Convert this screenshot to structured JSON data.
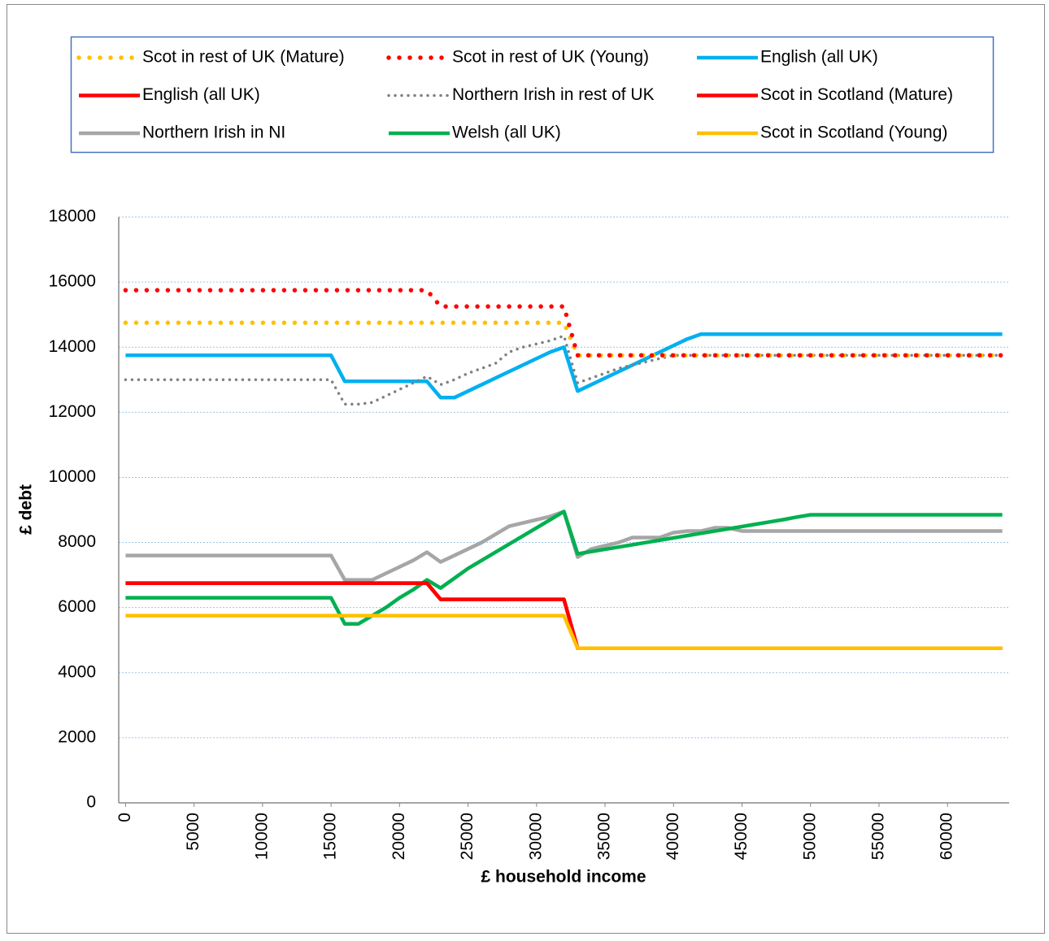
{
  "chart_data": {
    "type": "line",
    "x_label": "£ household income",
    "y_label": "£ debt",
    "x": [
      0,
      1000,
      2000,
      3000,
      4000,
      5000,
      6000,
      7000,
      8000,
      9000,
      10000,
      11000,
      12000,
      13000,
      14000,
      15000,
      16000,
      17000,
      18000,
      19000,
      20000,
      21000,
      22000,
      23000,
      24000,
      25000,
      26000,
      27000,
      28000,
      29000,
      30000,
      31000,
      32000,
      33000,
      34000,
      35000,
      36000,
      37000,
      38000,
      39000,
      40000,
      41000,
      42000,
      43000,
      44000,
      45000,
      46000,
      47000,
      48000,
      49000,
      50000,
      51000,
      52000,
      53000,
      54000,
      55000,
      56000,
      57000,
      58000,
      59000,
      60000,
      61000,
      62000,
      63000,
      64000
    ],
    "xlim": [
      -500,
      64500
    ],
    "xticks": [
      0,
      5000,
      10000,
      15000,
      20000,
      25000,
      30000,
      35000,
      40000,
      45000,
      50000,
      55000,
      60000
    ],
    "ylim": [
      0,
      18000
    ],
    "yticks": [
      0,
      2000,
      4000,
      6000,
      8000,
      10000,
      12000,
      14000,
      16000,
      18000
    ],
    "grid": true,
    "series": [
      {
        "name": "Scot in rest of UK (Mature)",
        "color": "#ffc000",
        "line_style": "dotted",
        "values": [
          14750,
          14750,
          14750,
          14750,
          14750,
          14750,
          14750,
          14750,
          14750,
          14750,
          14750,
          14750,
          14750,
          14750,
          14750,
          14750,
          14750,
          14750,
          14750,
          14750,
          14750,
          14750,
          14750,
          14750,
          14750,
          14750,
          14750,
          14750,
          14750,
          14750,
          14750,
          14750,
          14750,
          13750,
          13750,
          13750,
          13750,
          13750,
          13750,
          13750,
          13750,
          13750,
          13750,
          13750,
          13750,
          13750,
          13750,
          13750,
          13750,
          13750,
          13750,
          13750,
          13750,
          13750,
          13750,
          13750,
          13750,
          13750,
          13750,
          13750,
          13750,
          13750,
          13750,
          13750,
          13750
        ]
      },
      {
        "name": "Scot in rest of UK (Young)",
        "color": "#ff0000",
        "line_style": "dotted",
        "values": [
          15750,
          15750,
          15750,
          15750,
          15750,
          15750,
          15750,
          15750,
          15750,
          15750,
          15750,
          15750,
          15750,
          15750,
          15750,
          15750,
          15750,
          15750,
          15750,
          15750,
          15750,
          15750,
          15750,
          15250,
          15250,
          15250,
          15250,
          15250,
          15250,
          15250,
          15250,
          15250,
          15250,
          13750,
          13750,
          13750,
          13750,
          13750,
          13750,
          13750,
          13750,
          13750,
          13750,
          13750,
          13750,
          13750,
          13750,
          13750,
          13750,
          13750,
          13750,
          13750,
          13750,
          13750,
          13750,
          13750,
          13750,
          13750,
          13750,
          13750,
          13750,
          13750,
          13750,
          13750,
          13750
        ]
      },
      {
        "name": "English (all UK)",
        "color": "#00b0f0",
        "line_style": "solid",
        "values": [
          13750,
          13750,
          13750,
          13750,
          13750,
          13750,
          13750,
          13750,
          13750,
          13750,
          13750,
          13750,
          13750,
          13750,
          13750,
          13750,
          12950,
          12950,
          12950,
          12950,
          12950,
          12950,
          12950,
          12450,
          12450,
          12650,
          12850,
          13050,
          13250,
          13450,
          13650,
          13850,
          14000,
          12650,
          12850,
          13050,
          13250,
          13450,
          13650,
          13850,
          14050,
          14250,
          14400,
          14400,
          14400,
          14400,
          14400,
          14400,
          14400,
          14400,
          14400,
          14400,
          14400,
          14400,
          14400,
          14400,
          14400,
          14400,
          14400,
          14400,
          14400,
          14400,
          14400,
          14400,
          14400
        ]
      },
      {
        "name": "English (all UK)",
        "color": "#ff0000",
        "line_style": "solid",
        "values": [
          6750,
          6750,
          6750,
          6750,
          6750,
          6750,
          6750,
          6750,
          6750,
          6750,
          6750,
          6750,
          6750,
          6750,
          6750,
          6750,
          6750,
          6750,
          6750,
          6750,
          6750,
          6750,
          6750,
          6250,
          6250,
          6250,
          6250,
          6250,
          6250,
          6250,
          6250,
          6250,
          6250,
          4750,
          4750,
          4750,
          4750,
          4750,
          4750,
          4750,
          4750,
          4750,
          4750,
          4750,
          4750,
          4750,
          4750,
          4750,
          4750,
          4750,
          4750,
          4750,
          4750,
          4750,
          4750,
          4750,
          4750,
          4750,
          4750,
          4750,
          4750,
          4750,
          4750,
          4750,
          4750
        ]
      },
      {
        "name": "Northern Irish in rest of UK",
        "color": "#808080",
        "line_style": "dotted",
        "values": [
          13000,
          13000,
          13000,
          13000,
          13000,
          13000,
          13000,
          13000,
          13000,
          13000,
          13000,
          13000,
          13000,
          13000,
          13000,
          13000,
          12250,
          12250,
          12300,
          12500,
          12700,
          12900,
          13100,
          12850,
          13000,
          13200,
          13350,
          13500,
          13850,
          14000,
          14100,
          14200,
          14350,
          12900,
          13050,
          13200,
          13350,
          13450,
          13550,
          13650,
          13750,
          13750,
          13750,
          13750,
          13750,
          13750,
          13750,
          13750,
          13750,
          13750,
          13750,
          13750,
          13750,
          13750,
          13750,
          13750,
          13750,
          13750,
          13750,
          13750,
          13750,
          13750,
          13750,
          13750,
          13750
        ]
      },
      {
        "name": "Scot in Scotland (Mature)",
        "color": "#ff0000",
        "line_style": "solid",
        "values": [
          6750,
          6750,
          6750,
          6750,
          6750,
          6750,
          6750,
          6750,
          6750,
          6750,
          6750,
          6750,
          6750,
          6750,
          6750,
          6750,
          6750,
          6750,
          6750,
          6750,
          6750,
          6750,
          6750,
          6250,
          6250,
          6250,
          6250,
          6250,
          6250,
          6250,
          6250,
          6250,
          6250,
          4750,
          4750,
          4750,
          4750,
          4750,
          4750,
          4750,
          4750,
          4750,
          4750,
          4750,
          4750,
          4750,
          4750,
          4750,
          4750,
          4750,
          4750,
          4750,
          4750,
          4750,
          4750,
          4750,
          4750,
          4750,
          4750,
          4750,
          4750,
          4750,
          4750,
          4750,
          4750
        ]
      },
      {
        "name": "Northern Irish in NI",
        "color": "#a6a6a6",
        "line_style": "solid",
        "values": [
          7600,
          7600,
          7600,
          7600,
          7600,
          7600,
          7600,
          7600,
          7600,
          7600,
          7600,
          7600,
          7600,
          7600,
          7600,
          7600,
          6850,
          6850,
          6850,
          7050,
          7250,
          7450,
          7700,
          7400,
          7600,
          7800,
          8000,
          8250,
          8500,
          8600,
          8700,
          8800,
          8950,
          7550,
          7800,
          7900,
          8000,
          8150,
          8150,
          8150,
          8300,
          8350,
          8350,
          8450,
          8450,
          8350,
          8350,
          8350,
          8350,
          8350,
          8350,
          8350,
          8350,
          8350,
          8350,
          8350,
          8350,
          8350,
          8350,
          8350,
          8350,
          8350,
          8350,
          8350,
          8350
        ]
      },
      {
        "name": "Welsh (all UK)",
        "color": "#00b050",
        "line_style": "solid",
        "values": [
          6300,
          6300,
          6300,
          6300,
          6300,
          6300,
          6300,
          6300,
          6300,
          6300,
          6300,
          6300,
          6300,
          6300,
          6300,
          6300,
          5500,
          5500,
          5750,
          6000,
          6300,
          6550,
          6850,
          6600,
          6900,
          7200,
          7450,
          7700,
          7950,
          8200,
          8450,
          8700,
          8950,
          7650,
          7720,
          7790,
          7860,
          7930,
          8000,
          8070,
          8140,
          8210,
          8280,
          8350,
          8420,
          8490,
          8560,
          8630,
          8700,
          8780,
          8850,
          8850,
          8850,
          8850,
          8850,
          8850,
          8850,
          8850,
          8850,
          8850,
          8850,
          8850,
          8850,
          8850,
          8850
        ]
      },
      {
        "name": "Scot in Scotland (Young)",
        "color": "#ffc000",
        "line_style": "solid",
        "values": [
          5750,
          5750,
          5750,
          5750,
          5750,
          5750,
          5750,
          5750,
          5750,
          5750,
          5750,
          5750,
          5750,
          5750,
          5750,
          5750,
          5750,
          5750,
          5750,
          5750,
          5750,
          5750,
          5750,
          5750,
          5750,
          5750,
          5750,
          5750,
          5750,
          5750,
          5750,
          5750,
          5750,
          4750,
          4750,
          4750,
          4750,
          4750,
          4750,
          4750,
          4750,
          4750,
          4750,
          4750,
          4750,
          4750,
          4750,
          4750,
          4750,
          4750,
          4750,
          4750,
          4750,
          4750,
          4750,
          4750,
          4750,
          4750,
          4750,
          4750,
          4750,
          4750,
          4750,
          4750,
          4750
        ]
      }
    ]
  }
}
